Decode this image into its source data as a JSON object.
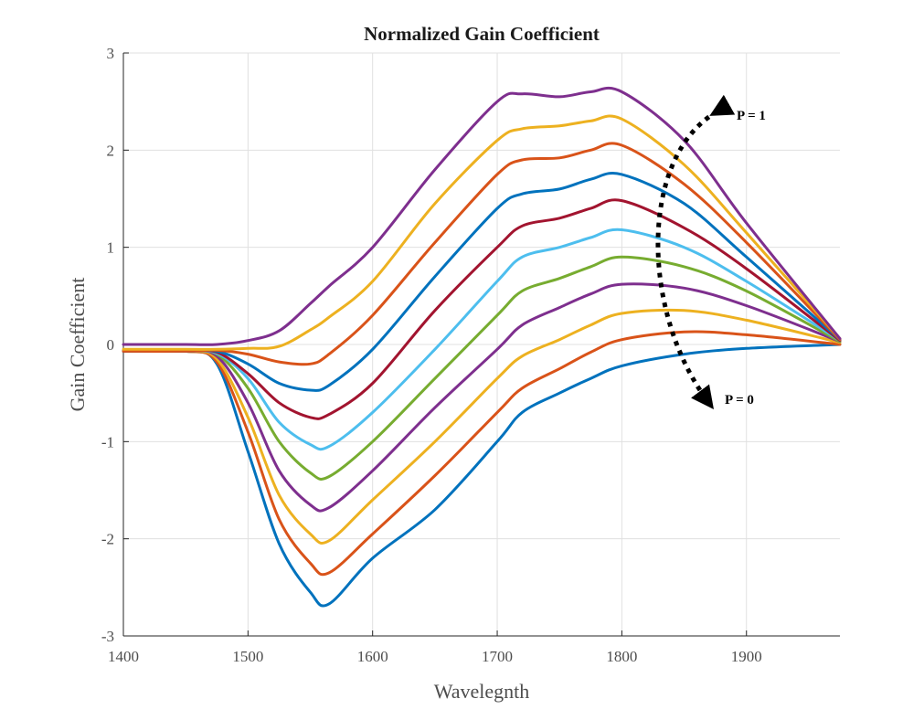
{
  "chart_data": {
    "type": "line",
    "title": "Normalized Gain Coefficient",
    "xlabel": "Wavelegnth",
    "ylabel": "Gain Coefficient",
    "xlim": [
      1400,
      1975
    ],
    "ylim": [
      -3,
      3
    ],
    "xticks": [
      "1400",
      "1500",
      "1600",
      "1700",
      "1800",
      "1900"
    ],
    "yticks": [
      "-3",
      "-2",
      "-1",
      "0",
      "1",
      "2",
      "3"
    ],
    "grid": true,
    "annotations": [
      {
        "text": "P = 1"
      },
      {
        "text": "P = 0"
      }
    ],
    "x": [
      1400,
      1450,
      1475,
      1500,
      1525,
      1550,
      1565,
      1600,
      1650,
      1700,
      1720,
      1750,
      1775,
      1800,
      1850,
      1900,
      1975
    ],
    "series": [
      {
        "color": "#0072bd",
        "values": [
          -0.07,
          -0.07,
          -0.2,
          -1.1,
          -2.05,
          -2.55,
          -2.67,
          -2.2,
          -1.7,
          -1.0,
          -0.7,
          -0.5,
          -0.35,
          -0.22,
          -0.1,
          -0.04,
          0.0
        ]
      },
      {
        "color": "#d95319",
        "values": [
          -0.07,
          -0.07,
          -0.18,
          -0.9,
          -1.8,
          -2.25,
          -2.35,
          -1.95,
          -1.35,
          -0.7,
          -0.45,
          -0.25,
          -0.08,
          0.05,
          0.13,
          0.1,
          0.0
        ]
      },
      {
        "color": "#edb120",
        "values": [
          -0.07,
          -0.07,
          -0.15,
          -0.75,
          -1.55,
          -1.95,
          -2.02,
          -1.6,
          -1.0,
          -0.35,
          -0.12,
          0.05,
          0.2,
          0.32,
          0.35,
          0.25,
          0.02
        ]
      },
      {
        "color": "#7e2f8e",
        "values": [
          -0.07,
          -0.07,
          -0.12,
          -0.6,
          -1.3,
          -1.65,
          -1.68,
          -1.3,
          -0.65,
          -0.05,
          0.2,
          0.38,
          0.52,
          0.62,
          0.58,
          0.4,
          0.03
        ]
      },
      {
        "color": "#77ac30",
        "values": [
          -0.07,
          -0.07,
          -0.1,
          -0.45,
          -1.0,
          -1.32,
          -1.36,
          -1.0,
          -0.35,
          0.3,
          0.55,
          0.68,
          0.8,
          0.9,
          0.8,
          0.55,
          0.03
        ]
      },
      {
        "color": "#4dbeee",
        "values": [
          -0.07,
          -0.07,
          -0.09,
          -0.35,
          -0.8,
          -1.03,
          -1.05,
          -0.7,
          -0.05,
          0.65,
          0.9,
          1.0,
          1.1,
          1.18,
          1.0,
          0.65,
          0.04
        ]
      },
      {
        "color": "#a2142f",
        "values": [
          -0.07,
          -0.07,
          -0.08,
          -0.3,
          -0.6,
          -0.75,
          -0.72,
          -0.4,
          0.35,
          1.0,
          1.22,
          1.3,
          1.4,
          1.48,
          1.2,
          0.78,
          0.04
        ]
      },
      {
        "color": "#0072bd",
        "values": [
          -0.07,
          -0.07,
          -0.07,
          -0.2,
          -0.4,
          -0.47,
          -0.42,
          -0.05,
          0.7,
          1.4,
          1.55,
          1.6,
          1.7,
          1.75,
          1.45,
          0.9,
          0.05
        ]
      },
      {
        "color": "#d95319",
        "values": [
          -0.07,
          -0.07,
          -0.06,
          -0.1,
          -0.18,
          -0.2,
          -0.1,
          0.3,
          1.05,
          1.75,
          1.9,
          1.92,
          2.0,
          2.05,
          1.65,
          1.05,
          0.05
        ]
      },
      {
        "color": "#edb120",
        "values": [
          -0.05,
          -0.05,
          -0.05,
          -0.04,
          -0.02,
          0.15,
          0.28,
          0.65,
          1.45,
          2.1,
          2.22,
          2.25,
          2.3,
          2.32,
          1.85,
          1.15,
          0.06
        ]
      },
      {
        "color": "#7e2f8e",
        "values": [
          0.0,
          0.0,
          0.0,
          0.04,
          0.14,
          0.42,
          0.6,
          1.0,
          1.8,
          2.5,
          2.58,
          2.55,
          2.6,
          2.6,
          2.1,
          1.25,
          0.06
        ]
      }
    ]
  }
}
